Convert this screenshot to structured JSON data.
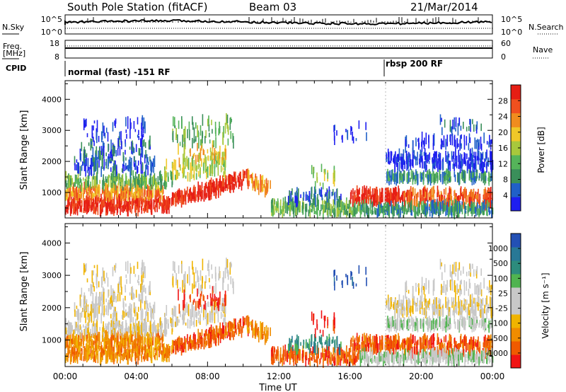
{
  "header": {
    "station": "South Pole Station (fitACF)",
    "beam": "Beam 03",
    "date": "21/Mar/2014"
  },
  "top_panels": {
    "nsky_label": "N.Sky",
    "nsky_ticks": [
      "10^5",
      "10^0"
    ],
    "nsearch_label": "N.Search",
    "nsearch_ticks": [
      "10^5",
      "10^0"
    ],
    "freq_label": "Freq.",
    "freq_unit": "[MHz]",
    "freq_ticks": [
      "18",
      "8"
    ],
    "nave_label": "Nave",
    "nave_ticks": [
      "60",
      "0"
    ],
    "cpid_label": "CPID",
    "cpid_modes": [
      {
        "text": "normal (fast) -151 RF",
        "start_hour": 0
      },
      {
        "text": "rbsp 200 RF",
        "start_hour": 18
      }
    ]
  },
  "colors": {
    "power_scale": [
      "#1e1ef0",
      "#2060c8",
      "#3a8f5a",
      "#55b45a",
      "#a8c83c",
      "#f0c828",
      "#f08c1e",
      "#f0501e",
      "#e61e14"
    ],
    "velocity_scale": [
      "#f01414",
      "#f05a00",
      "#f08c00",
      "#f0b400",
      "#c8c8c8",
      "#c8c8c8",
      "#50b450",
      "#2d8c7d",
      "#287896",
      "#2350b4"
    ]
  },
  "chart_data": [
    {
      "type": "heatmap",
      "name": "power",
      "xlabel": "",
      "ylabel": "Slant Range [km]",
      "x_ticks": [
        "00:00",
        "04:00",
        "08:00",
        "12:00",
        "16:00",
        "20:00",
        "00:00"
      ],
      "y_ticks": [
        1000,
        2000,
        3000,
        4000
      ],
      "xlim": [
        0,
        24
      ],
      "ylim": [
        180,
        4600
      ],
      "colorbar_label": "Power [dB]",
      "colorbar_ticks": [
        4,
        8,
        12,
        16,
        20,
        24,
        28
      ],
      "colorbar_range": [
        0,
        32
      ]
    },
    {
      "type": "heatmap",
      "name": "velocity",
      "xlabel": "Time UT",
      "ylabel": "Slant Range [km]",
      "x_ticks": [
        "00:00",
        "04:00",
        "08:00",
        "12:00",
        "16:00",
        "20:00",
        "00:00"
      ],
      "y_ticks": [
        1000,
        2000,
        3000,
        4000
      ],
      "xlim": [
        0,
        24
      ],
      "ylim": [
        180,
        4600
      ],
      "colorbar_label": "Velocity [m s⁻¹]",
      "colorbar_ticks": [
        "1000",
        "500",
        "100",
        "25",
        "-25",
        "-100",
        "-500",
        "-1000"
      ]
    }
  ]
}
